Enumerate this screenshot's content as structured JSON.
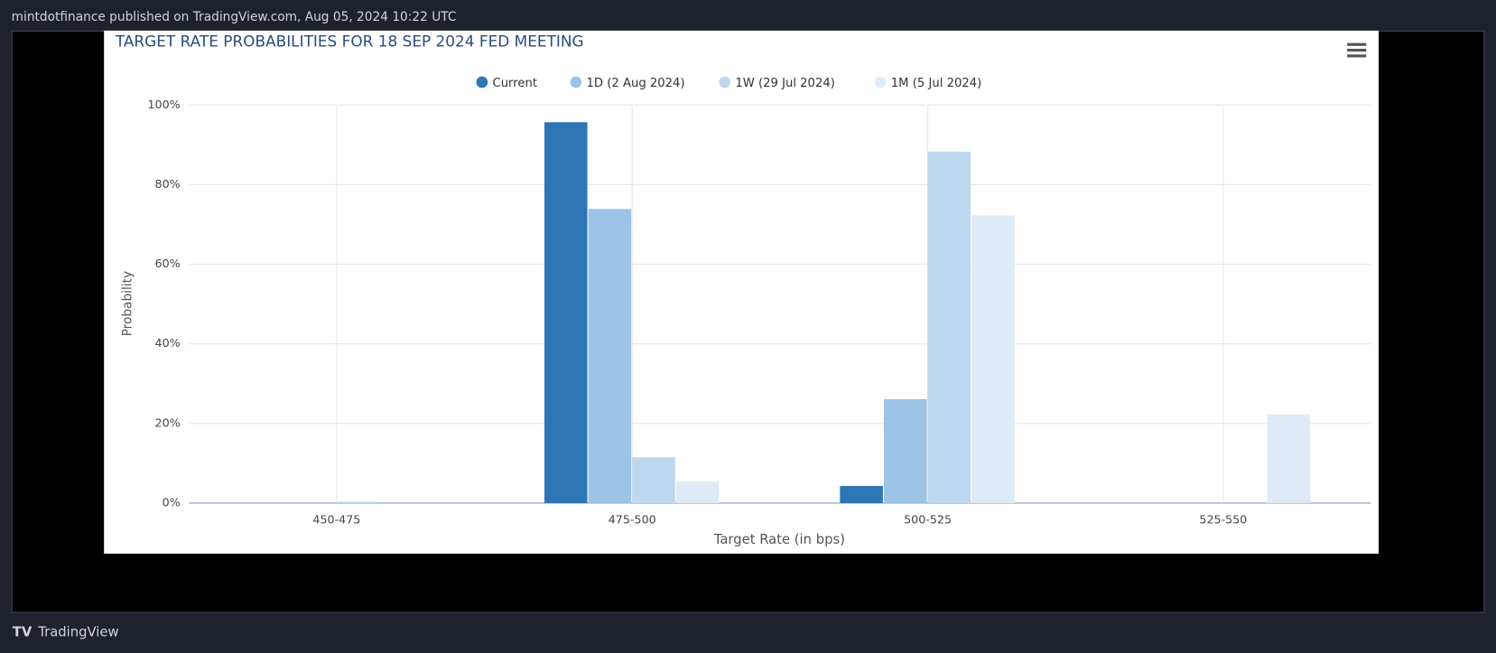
{
  "page": {
    "byline": "mintdotfinance published on TradingView.com, Aug 05, 2024 10:22 UTC",
    "brand": "TradingView"
  },
  "chart_data": {
    "type": "bar",
    "title": "TARGET RATE PROBABILITIES FOR 18 SEP 2024 FED MEETING",
    "x_label": "Target Rate (in bps)",
    "y_label": "Probability",
    "categories": [
      "450-475",
      "475-500",
      "500-525",
      "525-550"
    ],
    "series": [
      {
        "name": "Current",
        "color": "#2e75b6",
        "values": [
          0,
          95.7,
          4.3,
          0
        ]
      },
      {
        "name": "1D (2 Aug 2024)",
        "color": "#9dc3e6",
        "values": [
          0,
          73.9,
          26.1,
          0
        ]
      },
      {
        "name": "1W (29 Jul 2024)",
        "color": "#bdd7ee",
        "values": [
          0.3,
          11.5,
          88.3,
          0
        ]
      },
      {
        "name": "1M (5 Jul 2024)",
        "color": "#deebf7",
        "values": [
          0,
          5.4,
          72.3,
          22.3
        ]
      }
    ],
    "ylim": [
      0,
      100
    ],
    "yticks": [
      {
        "value": 0,
        "label": "0%"
      },
      {
        "value": 20,
        "label": "20%"
      },
      {
        "value": 40,
        "label": "40%"
      },
      {
        "value": 60,
        "label": "60%"
      },
      {
        "value": 80,
        "label": "80%"
      },
      {
        "value": 100,
        "label": "100%"
      }
    ],
    "grid": true,
    "legend": "top"
  }
}
